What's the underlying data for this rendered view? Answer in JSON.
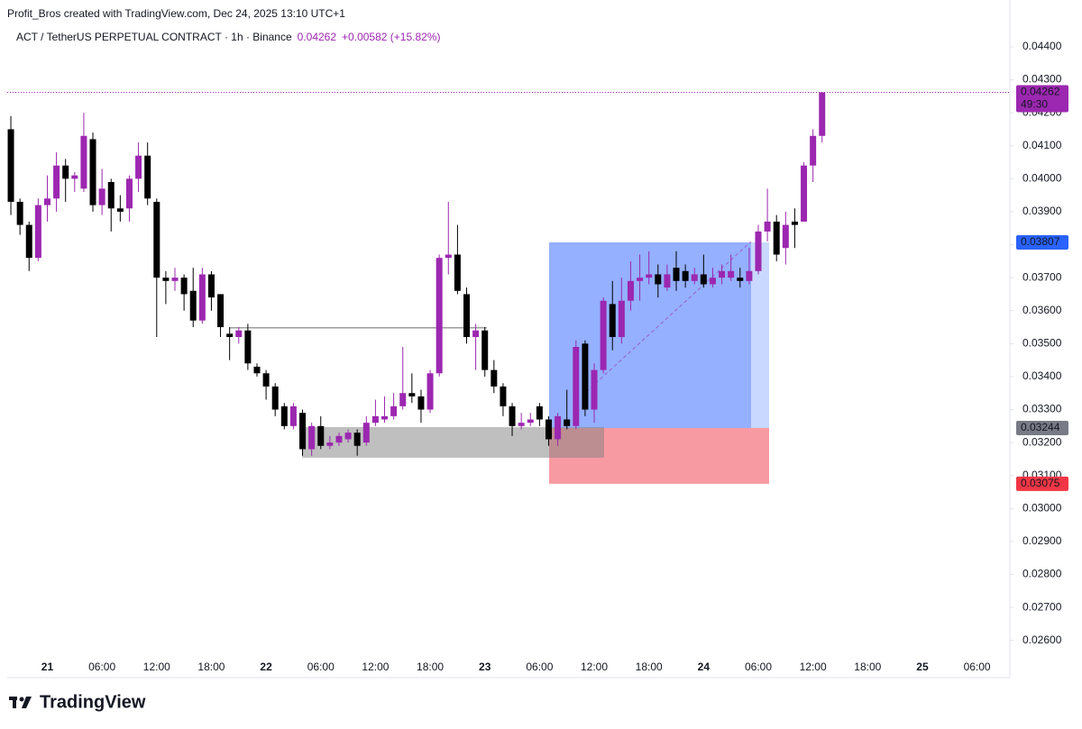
{
  "chart_data": {
    "type": "candlestick",
    "header": "Profit_Bros created with TradingView.com, Dec 24, 2025 13:10 UTC+1",
    "symbol": "ACT / TetherUS PERPETUAL CONTRACT · 1h · Binance",
    "last_price": 0.04262,
    "change": "+0.00582 (+15.82%)",
    "countdown": "49:30",
    "brand": "TradingView",
    "up_color": "#9c27b0",
    "down_color": "#000000",
    "ylim": [
      0.0255,
      0.0446
    ],
    "yticks": [
      {
        "value": 0.026,
        "label": "0.02600"
      },
      {
        "value": 0.027,
        "label": "0.02700"
      },
      {
        "value": 0.028,
        "label": "0.02800"
      },
      {
        "value": 0.029,
        "label": "0.02900"
      },
      {
        "value": 0.03,
        "label": "0.03000"
      },
      {
        "value": 0.031,
        "label": "0.03100"
      },
      {
        "value": 0.032,
        "label": "0.03200"
      },
      {
        "value": 0.033,
        "label": "0.03300"
      },
      {
        "value": 0.034,
        "label": "0.03400"
      },
      {
        "value": 0.035,
        "label": "0.03500"
      },
      {
        "value": 0.036,
        "label": "0.03600"
      },
      {
        "value": 0.037,
        "label": "0.03700"
      },
      {
        "value": 0.038,
        "label": "0.03800"
      },
      {
        "value": 0.039,
        "label": "0.03900"
      },
      {
        "value": 0.04,
        "label": "0.04000"
      },
      {
        "value": 0.041,
        "label": "0.04100"
      },
      {
        "value": 0.042,
        "label": "0.04200"
      },
      {
        "value": 0.043,
        "label": "0.04300"
      },
      {
        "value": 0.044,
        "label": "0.04400"
      }
    ],
    "categories": [
      null,
      null,
      null,
      null,
      "21",
      null,
      null,
      null,
      null,
      null,
      "06:00",
      null,
      null,
      null,
      null,
      null,
      "12:00",
      null,
      null,
      null,
      null,
      null,
      "18:00",
      null,
      null,
      null,
      null,
      null,
      "22",
      null,
      null,
      null,
      null,
      null,
      "06:00",
      null,
      null,
      null,
      null,
      null,
      "12:00",
      null,
      null,
      null,
      null,
      null,
      "18:00",
      null,
      null,
      null,
      null,
      null,
      "23",
      null,
      null,
      null,
      null,
      null,
      "06:00",
      null,
      null,
      null,
      null,
      null,
      "12:00",
      null,
      null,
      null,
      null,
      null,
      "18:00",
      null,
      null,
      null,
      null,
      null,
      "24",
      null,
      null,
      null,
      null,
      null,
      "06:00",
      null,
      null,
      null,
      null,
      null,
      "12:00",
      null,
      null,
      null,
      null,
      null,
      "18:00",
      null,
      null,
      null,
      null,
      null,
      "25",
      null,
      null,
      null,
      null,
      null,
      "06:00",
      null,
      null,
      null
    ],
    "open": [
      0.0415,
      0.0393,
      0.0386,
      0.0376,
      0.0392,
      0.0394,
      0.0404,
      0.04,
      0.0397,
      0.0412,
      0.0392,
      0.0399,
      0.0391,
      0.0391,
      0.04,
      0.0407,
      0.0393,
      0.037,
      0.0369,
      0.037,
      0.0366,
      0.0357,
      0.0371,
      0.0365,
      0.0353,
      0.0352,
      0.0354,
      0.0343,
      0.0341,
      0.0337,
      0.0331,
      0.0325,
      0.0329,
      0.0318,
      0.0325,
      0.0319,
      0.032,
      0.0321,
      0.0323,
      0.032,
      0.0326,
      0.0327,
      0.0328,
      0.0331,
      0.0335,
      0.0334,
      0.033,
      0.0341,
      0.0376,
      0.0377,
      0.0365,
      0.0352,
      0.0354,
      0.0342,
      0.0337,
      0.0331,
      0.0325,
      0.0326,
      0.0331,
      0.0327,
      0.0321,
      0.0327,
      0.0325,
      0.035,
      0.033,
      0.0342,
      0.0362,
      0.0352,
      0.0363,
      0.0369,
      0.037,
      0.0371,
      0.0367,
      0.0373,
      0.0372,
      0.0369,
      0.0371,
      0.0368,
      0.037,
      0.037,
      0.037,
      0.0369,
      0.0372,
      0.0384,
      0.0387,
      0.0379,
      0.0387,
      0.0387,
      0.0404,
      0.0413,
      null,
      null,
      null,
      null,
      null,
      null,
      null,
      null,
      null,
      null,
      null,
      null,
      null,
      null,
      null,
      null,
      null,
      null,
      null,
      null
    ],
    "high": [
      0.0419,
      0.0394,
      0.0387,
      0.0394,
      0.0401,
      0.0408,
      0.0406,
      0.0402,
      0.042,
      0.0414,
      0.0403,
      0.04,
      0.0395,
      0.0401,
      0.0411,
      0.0411,
      0.0394,
      0.0372,
      0.0373,
      0.0371,
      0.0373,
      0.0373,
      0.0372,
      0.0365,
      0.0355,
      0.0355,
      0.0356,
      0.0344,
      0.0342,
      0.0338,
      0.0332,
      0.0332,
      0.033,
      0.0326,
      0.0328,
      0.0322,
      0.0323,
      0.0324,
      0.0324,
      0.0328,
      0.0333,
      0.0334,
      0.0335,
      0.0349,
      0.0341,
      0.0336,
      0.0342,
      0.0377,
      0.0393,
      0.0386,
      0.0367,
      0.0356,
      0.0355,
      0.0345,
      0.0338,
      0.0332,
      0.0329,
      0.0329,
      0.0332,
      0.0328,
      0.0329,
      0.0336,
      0.0351,
      0.0351,
      0.0344,
      0.0364,
      0.0369,
      0.037,
      0.0375,
      0.0377,
      0.0378,
      0.0374,
      0.0374,
      0.0378,
      0.0374,
      0.0373,
      0.0377,
      0.0373,
      0.0374,
      0.0377,
      0.0373,
      0.0379,
      0.0386,
      0.0397,
      0.0389,
      0.039,
      0.0391,
      0.0405,
      0.0415,
      0.04262,
      null,
      null,
      null,
      null,
      null,
      null,
      null,
      null,
      null,
      null,
      null,
      null,
      null,
      null,
      null,
      null,
      null,
      null,
      null,
      null
    ],
    "low": [
      0.0389,
      0.0383,
      0.0372,
      0.0375,
      0.0387,
      0.039,
      0.0393,
      0.0396,
      0.0396,
      0.039,
      0.0389,
      0.0384,
      0.0387,
      0.0387,
      0.0396,
      0.0392,
      0.0352,
      0.0362,
      0.0366,
      0.036,
      0.0355,
      0.0356,
      0.036,
      0.0352,
      0.0345,
      0.035,
      0.0342,
      0.034,
      0.0333,
      0.0328,
      0.0324,
      0.0324,
      0.0316,
      0.0316,
      0.0318,
      0.0318,
      0.0319,
      0.032,
      0.0316,
      0.0319,
      0.0325,
      0.0326,
      0.0327,
      0.033,
      0.0332,
      0.0326,
      0.0329,
      0.034,
      0.0371,
      0.0365,
      0.035,
      0.0342,
      0.034,
      0.0335,
      0.0328,
      0.0322,
      0.0324,
      0.0325,
      0.0325,
      0.0319,
      0.0319,
      0.0324,
      0.0324,
      0.0328,
      0.0326,
      0.0341,
      0.0348,
      0.035,
      0.036,
      0.0363,
      0.0368,
      0.0364,
      0.0366,
      0.0366,
      0.0367,
      0.0368,
      0.0367,
      0.0367,
      0.0368,
      0.0369,
      0.0367,
      0.0368,
      0.0371,
      0.0381,
      0.0375,
      0.0374,
      0.0379,
      0.0387,
      0.0399,
      0.0411,
      null,
      null,
      null,
      null,
      null,
      null,
      null,
      null,
      null,
      null,
      null,
      null,
      null,
      null,
      null,
      null,
      null,
      null,
      null,
      null
    ],
    "close": [
      0.0393,
      0.0386,
      0.0376,
      0.0392,
      0.0394,
      0.0404,
      0.04,
      0.0401,
      0.0413,
      0.0392,
      0.0397,
      0.0391,
      0.039,
      0.04,
      0.0407,
      0.0394,
      0.037,
      0.0369,
      0.037,
      0.0365,
      0.0357,
      0.0371,
      0.0364,
      0.0355,
      0.0352,
      0.0354,
      0.0344,
      0.0341,
      0.0337,
      0.033,
      0.0325,
      0.0331,
      0.0318,
      0.0325,
      0.0319,
      0.032,
      0.0322,
      0.0323,
      0.0319,
      0.0326,
      0.0328,
      0.0328,
      0.0331,
      0.0335,
      0.0334,
      0.033,
      0.0341,
      0.0376,
      0.0377,
      0.0366,
      0.0352,
      0.0354,
      0.0342,
      0.0337,
      0.0331,
      0.0325,
      0.0326,
      0.0327,
      0.0327,
      0.0321,
      0.0328,
      0.0325,
      0.0349,
      0.033,
      0.0342,
      0.0363,
      0.0352,
      0.0363,
      0.0369,
      0.037,
      0.0371,
      0.0368,
      0.0371,
      0.0369,
      0.0369,
      0.0371,
      0.0368,
      0.037,
      0.0372,
      0.0372,
      0.0369,
      0.0372,
      0.0384,
      0.0387,
      0.0377,
      0.0386,
      0.0386,
      0.0404,
      0.0413,
      0.04262,
      null,
      null,
      null,
      null,
      null,
      null,
      null,
      null,
      null,
      null,
      null,
      null,
      null,
      null,
      null,
      null,
      null,
      null,
      null,
      null
    ],
    "position": {
      "target": 0.03807,
      "entry": 0.03244,
      "stop": 0.03075
    },
    "zone": {
      "top": 0.03247,
      "bottom": 0.03154
    },
    "level": 0.03548
  }
}
